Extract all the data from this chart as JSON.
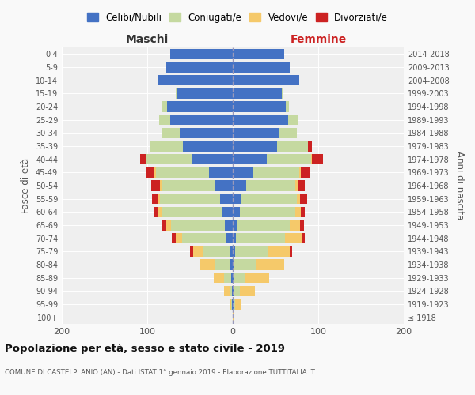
{
  "age_groups": [
    "100+",
    "95-99",
    "90-94",
    "85-89",
    "80-84",
    "75-79",
    "70-74",
    "65-69",
    "60-64",
    "55-59",
    "50-54",
    "45-49",
    "40-44",
    "35-39",
    "30-34",
    "25-29",
    "20-24",
    "15-19",
    "10-14",
    "5-9",
    "0-4"
  ],
  "birth_years": [
    "≤ 1918",
    "1919-1923",
    "1924-1928",
    "1929-1933",
    "1934-1938",
    "1939-1943",
    "1944-1948",
    "1949-1953",
    "1954-1958",
    "1959-1963",
    "1964-1968",
    "1969-1973",
    "1974-1978",
    "1979-1983",
    "1984-1988",
    "1989-1993",
    "1994-1998",
    "1999-2003",
    "2004-2008",
    "2009-2013",
    "2014-2018"
  ],
  "colors": {
    "celibi": "#4472c4",
    "coniugati": "#c5d9a0",
    "vedovi": "#f5c96a",
    "divorziati": "#cc2222"
  },
  "maschi": {
    "celibi": [
      0,
      1,
      1,
      2,
      3,
      4,
      7,
      9,
      13,
      15,
      20,
      28,
      48,
      58,
      62,
      73,
      77,
      65,
      88,
      78,
      73
    ],
    "coniugati": [
      0,
      1,
      3,
      8,
      18,
      30,
      52,
      63,
      70,
      70,
      62,
      62,
      53,
      38,
      20,
      13,
      5,
      2,
      0,
      0,
      0
    ],
    "vedovi": [
      0,
      2,
      6,
      12,
      17,
      12,
      8,
      6,
      4,
      3,
      3,
      2,
      1,
      0,
      0,
      0,
      0,
      0,
      0,
      0,
      0
    ],
    "divorziati": [
      0,
      0,
      0,
      0,
      0,
      4,
      4,
      5,
      5,
      6,
      10,
      10,
      6,
      1,
      1,
      0,
      0,
      0,
      0,
      0,
      0
    ]
  },
  "femmine": {
    "celibi": [
      0,
      1,
      1,
      1,
      2,
      3,
      4,
      5,
      8,
      10,
      16,
      23,
      40,
      52,
      55,
      65,
      62,
      57,
      78,
      67,
      60
    ],
    "coniugati": [
      0,
      2,
      7,
      14,
      25,
      38,
      57,
      62,
      65,
      65,
      57,
      55,
      52,
      36,
      20,
      11,
      4,
      2,
      0,
      0,
      0
    ],
    "vedovi": [
      1,
      7,
      18,
      28,
      33,
      26,
      20,
      12,
      7,
      4,
      3,
      2,
      1,
      0,
      0,
      0,
      0,
      0,
      0,
      0,
      0
    ],
    "divorziati": [
      0,
      0,
      0,
      0,
      0,
      2,
      3,
      4,
      4,
      8,
      8,
      11,
      13,
      5,
      0,
      0,
      0,
      0,
      0,
      0,
      0
    ]
  },
  "title": "Popolazione per età, sesso e stato civile - 2019",
  "subtitle": "COMUNE DI CASTELPLANIO (AN) - Dati ISTAT 1° gennaio 2019 - Elaborazione TUTTITALIA.IT",
  "xlabel_left": "Maschi",
  "xlabel_right": "Femmine",
  "ylabel_left": "Fasce di età",
  "ylabel_right": "Anni di nascita",
  "xlim": 200,
  "legend_labels": [
    "Celibi/Nubili",
    "Coniugati/e",
    "Vedovi/e",
    "Divorziati/e"
  ],
  "bg_color": "#f9f9f9",
  "plot_bg": "#efefef"
}
